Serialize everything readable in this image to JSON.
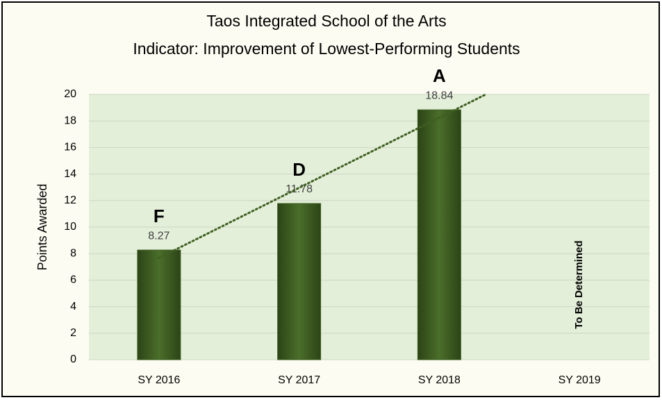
{
  "chart_data": {
    "type": "bar",
    "title": "Taos Integrated School of the Arts",
    "subtitle": "Indicator: Improvement  of Lowest-Performing Students",
    "y_label": "Points Awarded",
    "categories": [
      "SY 2016",
      "SY 2017",
      "SY 2018",
      "SY 2019"
    ],
    "values": [
      8.27,
      11.78,
      18.84,
      null
    ],
    "grades": [
      "F",
      "D",
      "A",
      null
    ],
    "annotation": "To Be Determined",
    "color": "#3f5f22",
    "ylim": [
      0,
      20
    ],
    "yticks": [
      0,
      2,
      4,
      6,
      8,
      10,
      12,
      14,
      16,
      18,
      20
    ],
    "grid": true,
    "trendline": true
  }
}
